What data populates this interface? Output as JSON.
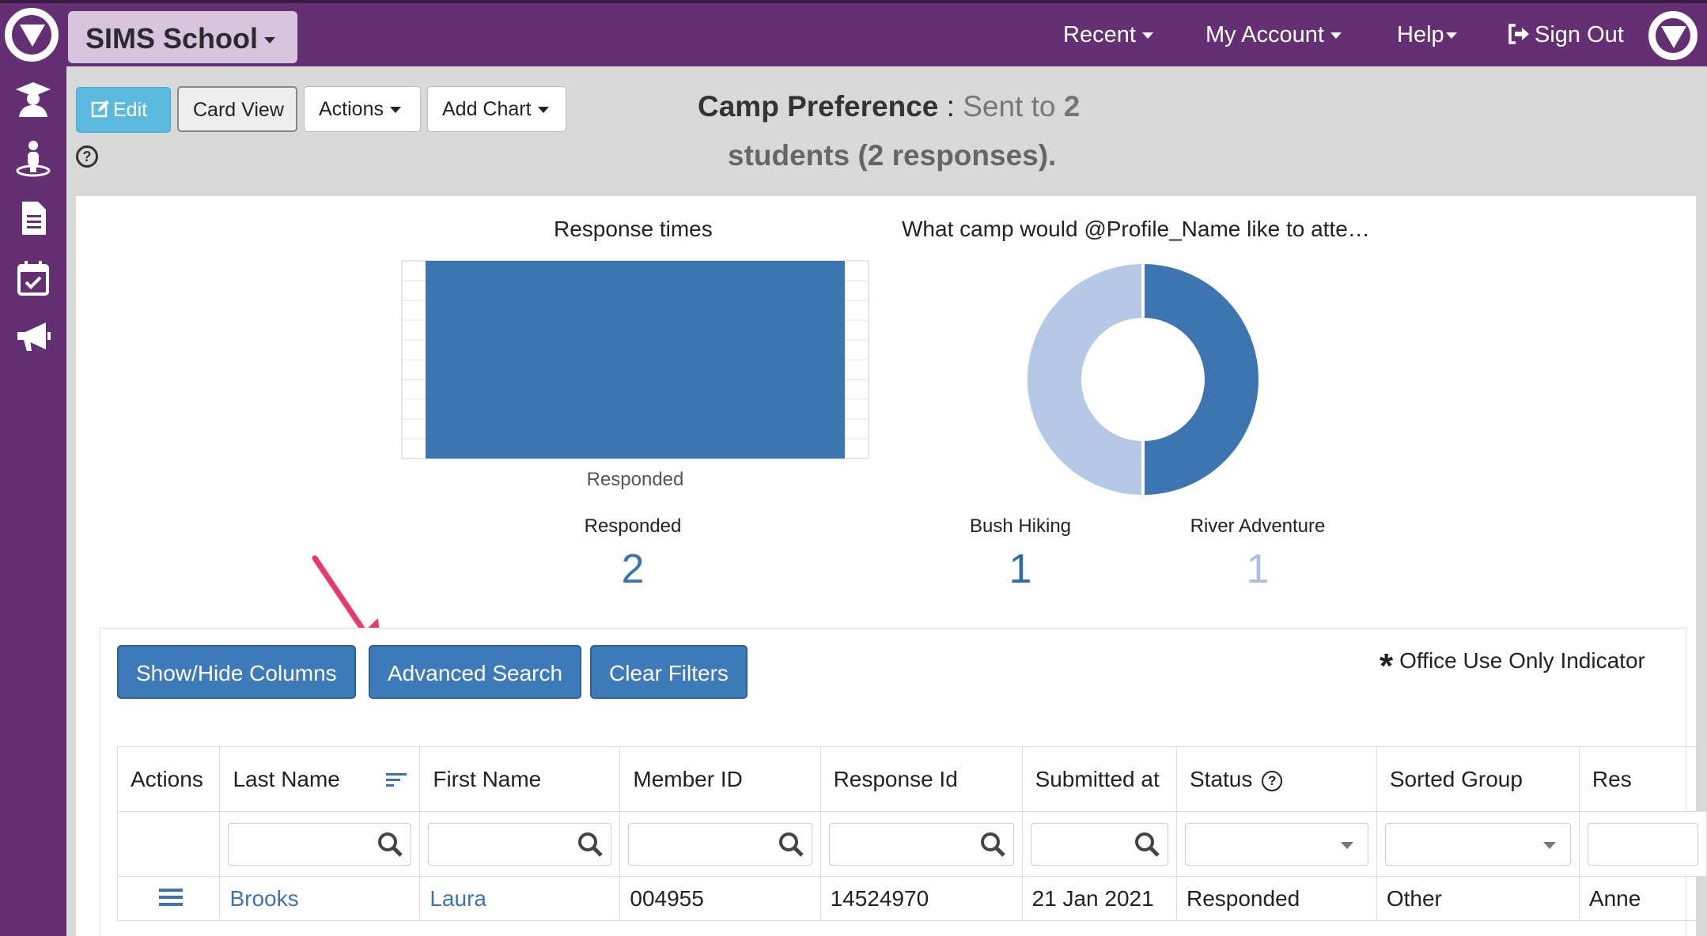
{
  "topbar": {
    "school_label": "SIMS School",
    "nav": [
      "Recent",
      "My Account",
      "Help",
      "Sign Out"
    ]
  },
  "sidebar": {
    "icons": [
      "student-icon",
      "person-icon",
      "document-icon",
      "calendar-check-icon",
      "megaphone-icon"
    ]
  },
  "toolbar": {
    "edit_label": "Edit",
    "card_view_label": "Card View",
    "actions_label": "Actions",
    "add_chart_label": "Add Chart"
  },
  "header": {
    "title": "Camp Preference",
    "separator": ":",
    "sent_text": "Sent to",
    "sent_count": "2",
    "subtitle": "students (2 responses)."
  },
  "colors": {
    "brand_purple": "#652f73",
    "bar_blue": "#3d74b2",
    "donut_light": "#b5c8e6",
    "button_blue": "#3d7ab9"
  },
  "chart_data": [
    {
      "type": "bar",
      "title": "Response times",
      "categories": [
        "Responded"
      ],
      "values": [
        2
      ],
      "ylim": [
        0,
        2
      ],
      "grid": true
    },
    {
      "type": "pie",
      "title": "What camp would @Profile_Name like to atte…",
      "labels": [
        "River Adventure",
        "Bush Hiking"
      ],
      "values": [
        1,
        1
      ],
      "colors": [
        "#3d74b2",
        "#b5c8e6"
      ],
      "donut": true
    }
  ],
  "stats": {
    "responded": {
      "label": "Responded",
      "value": "2"
    },
    "bush_hiking": {
      "label": "Bush Hiking",
      "value": "1"
    },
    "river_adventure": {
      "label": "River Adventure",
      "value": "1"
    }
  },
  "table_controls": {
    "show_hide_label": "Show/Hide Columns",
    "advanced_search_label": "Advanced Search",
    "clear_filters_label": "Clear Filters",
    "office_use_label": "Office Use Only Indicator"
  },
  "table": {
    "headers": [
      "Actions",
      "Last Name",
      "First Name",
      "Member ID",
      "Response Id",
      "Submitted at",
      "Status",
      "Sorted Group",
      "Res"
    ],
    "rows": [
      [
        "",
        "Brooks",
        "Laura",
        "004955",
        "14524970",
        "21 Jan 2021",
        "Responded",
        "Other",
        "Anne"
      ]
    ]
  }
}
